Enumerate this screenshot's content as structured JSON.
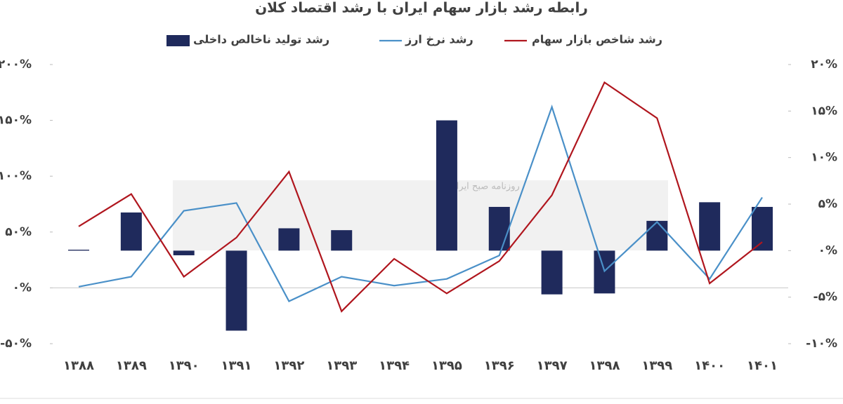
{
  "chart_data": {
    "type": "bar-line",
    "title": "رابطه رشد بازار سهام ایران با رشد اقتصاد کلان",
    "watermark": "روزنامه صبح ایران",
    "categories": [
      "۱۳۸۸",
      "۱۳۸۹",
      "۱۳۹۰",
      "۱۳۹۱",
      "۱۳۹۲",
      "۱۳۹۳",
      "۱۳۹۴",
      "۱۳۹۵",
      "۱۳۹۶",
      "۱۳۹۷",
      "۱۳۹۸",
      "۱۳۹۹",
      "۱۴۰۰",
      "۱۴۰۱"
    ],
    "series": [
      {
        "name": "رشد تولید ناخالص داخلی",
        "type": "bar",
        "axis": "y2",
        "color": "#1f2a5c",
        "values": [
          0.1,
          4.1,
          -0.5,
          -8.6,
          2.4,
          2.2,
          null,
          14,
          4.7,
          -4.7,
          -4.6,
          3.2,
          5.2,
          4.7
        ]
      },
      {
        "name": "رشد نرخ ارز",
        "type": "line",
        "axis": "y",
        "color": "#4a90c8",
        "values": [
          1,
          10,
          69,
          76,
          -12,
          10,
          2,
          8,
          29,
          162,
          15,
          59,
          8,
          81
        ]
      },
      {
        "name": "رشد شاخص بازار سهام",
        "type": "line",
        "axis": "y",
        "color": "#b0161e",
        "values": [
          55,
          84,
          10,
          45,
          104,
          -21,
          26,
          -5,
          24,
          83,
          184,
          152,
          4,
          41
        ]
      }
    ],
    "ylim": [
      -50,
      200
    ],
    "yticks": [
      {
        "value": -50,
        "label": "-۵۰%"
      },
      {
        "value": 0,
        "label": "۰%"
      },
      {
        "value": 50,
        "label": "۵۰%"
      },
      {
        "value": 100,
        "label": "۱۰۰%"
      },
      {
        "value": 150,
        "label": "۱۵۰%"
      },
      {
        "value": 200,
        "label": "۲۰۰%"
      }
    ],
    "y2lim": [
      -10,
      20
    ],
    "y2ticks": [
      {
        "value": -10,
        "label": "-۱۰%"
      },
      {
        "value": -5,
        "label": "-۵%"
      },
      {
        "value": 0,
        "label": "۰%"
      },
      {
        "value": 5,
        "label": "۵%"
      },
      {
        "value": 10,
        "label": "۱۰%"
      },
      {
        "value": 15,
        "label": "۱۵%"
      },
      {
        "value": 20,
        "label": "۲۰%"
      }
    ]
  }
}
